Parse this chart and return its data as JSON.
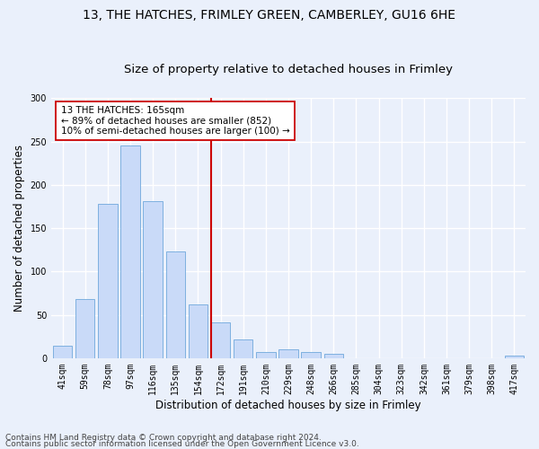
{
  "title_line1": "13, THE HATCHES, FRIMLEY GREEN, CAMBERLEY, GU16 6HE",
  "title_line2": "Size of property relative to detached houses in Frimley",
  "xlabel": "Distribution of detached houses by size in Frimley",
  "ylabel": "Number of detached properties",
  "bar_labels": [
    "41sqm",
    "59sqm",
    "78sqm",
    "97sqm",
    "116sqm",
    "135sqm",
    "154sqm",
    "172sqm",
    "191sqm",
    "210sqm",
    "229sqm",
    "248sqm",
    "266sqm",
    "285sqm",
    "304sqm",
    "323sqm",
    "342sqm",
    "361sqm",
    "379sqm",
    "398sqm",
    "417sqm"
  ],
  "bar_values": [
    14,
    68,
    178,
    245,
    181,
    123,
    62,
    41,
    22,
    7,
    10,
    7,
    5,
    0,
    0,
    0,
    0,
    0,
    0,
    0,
    3
  ],
  "bar_color": "#c9daf8",
  "bar_edge_color": "#6fa8dc",
  "vline_color": "#cc0000",
  "annotation_text": "13 THE HATCHES: 165sqm\n← 89% of detached houses are smaller (852)\n10% of semi-detached houses are larger (100) →",
  "annotation_box_color": "#ffffff",
  "annotation_box_edge": "#cc0000",
  "ylim": [
    0,
    300
  ],
  "yticks": [
    0,
    50,
    100,
    150,
    200,
    250,
    300
  ],
  "footer_line1": "Contains HM Land Registry data © Crown copyright and database right 2024.",
  "footer_line2": "Contains public sector information licensed under the Open Government Licence v3.0.",
  "background_color": "#eaf0fb",
  "grid_color": "#ffffff",
  "title_fontsize": 10,
  "subtitle_fontsize": 9.5,
  "axis_label_fontsize": 8.5,
  "tick_fontsize": 7,
  "footer_fontsize": 6.5
}
